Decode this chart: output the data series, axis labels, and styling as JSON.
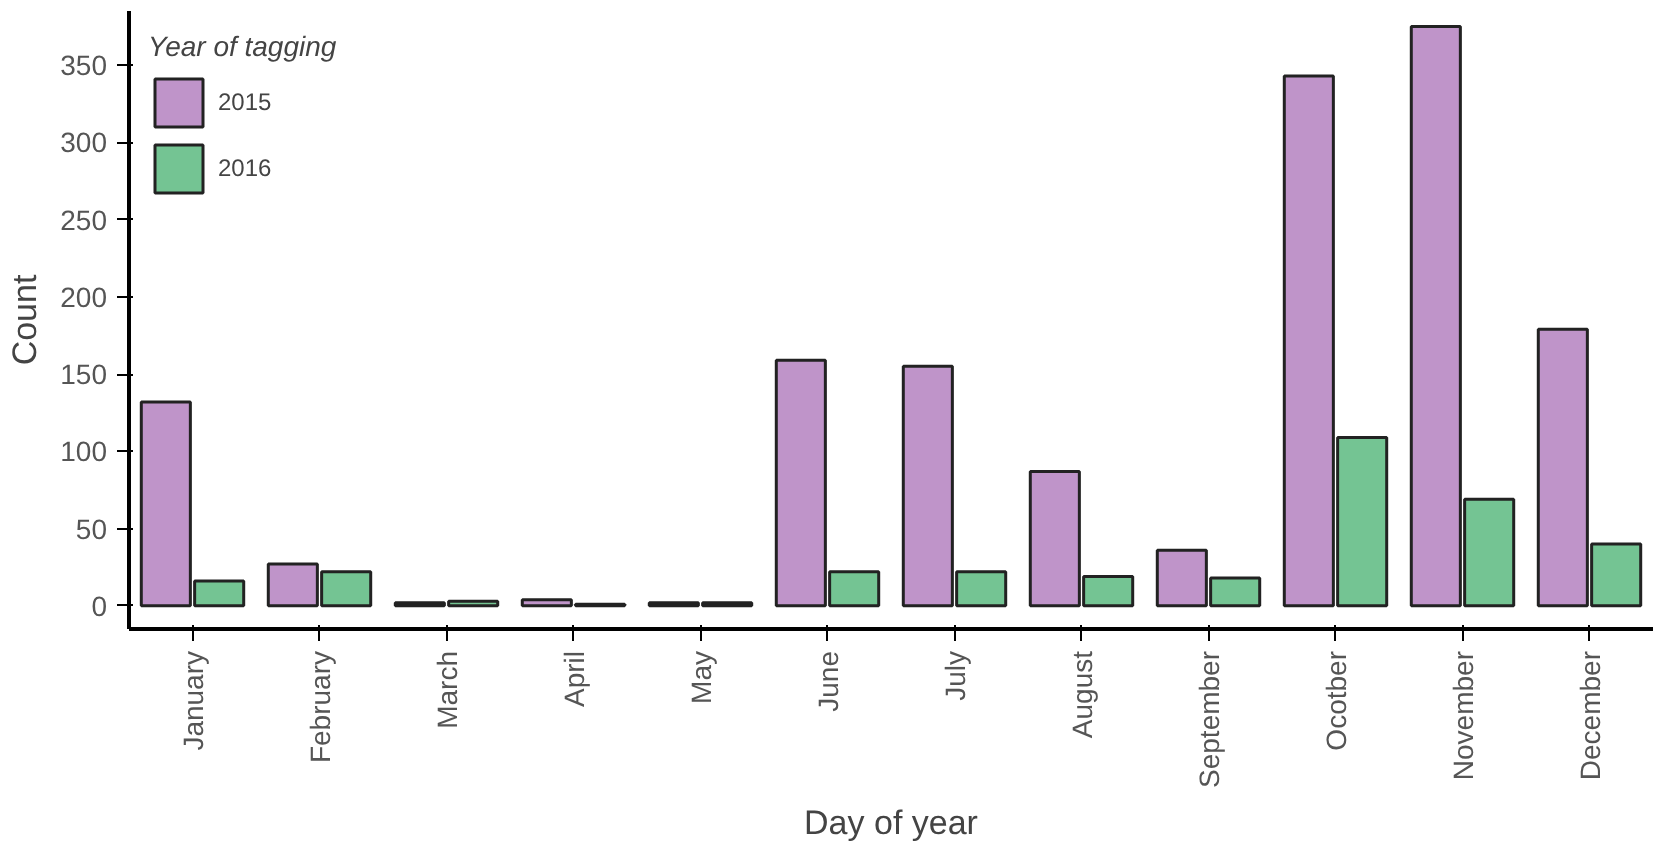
{
  "chart_data": {
    "type": "bar",
    "xlabel": "Day of year",
    "ylabel": "Count",
    "legend_title": "Year of tagging",
    "categories": [
      "January",
      "February",
      "March",
      "April",
      "May",
      "June",
      "July",
      "August",
      "September",
      "Ocotber",
      "November",
      "December"
    ],
    "series": [
      {
        "name": "2015",
        "color": "#bf94c9",
        "values": [
          132,
          27,
          2,
          4,
          2,
          159,
          155,
          87,
          36,
          343,
          375,
          179
        ]
      },
      {
        "name": "2016",
        "color": "#74c493",
        "values": [
          16,
          22,
          3,
          1,
          2,
          22,
          22,
          19,
          18,
          109,
          69,
          40
        ]
      }
    ],
    "ylim": [
      -15,
      385
    ],
    "yticks": [
      0,
      50,
      100,
      150,
      200,
      250,
      300,
      350
    ],
    "grid": false,
    "legend": "top left"
  }
}
